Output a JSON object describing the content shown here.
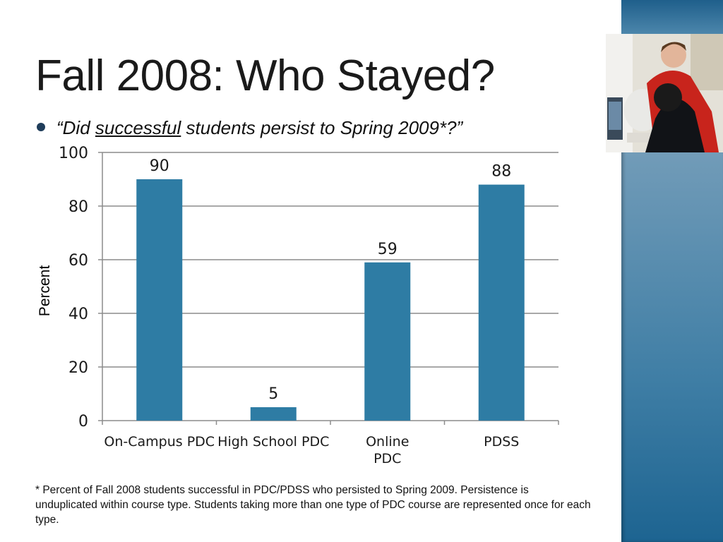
{
  "slide": {
    "title": "Fall 2008: Who Stayed?",
    "bullet": {
      "open_quote": "“Did ",
      "emphasis": "successful",
      "rest": " students persist to Spring 2009*?”"
    },
    "footnote": "* Percent of Fall 2008 students successful in PDC/PDSS who persisted to Spring 2009. Persistence is unduplicated within course type. Students taking more than one type of PDC course are represented once for each type."
  },
  "colors": {
    "bar": "#2e7ca4",
    "grid": "#8c8c8c",
    "text": "#1a1a1a"
  },
  "chart_data": {
    "type": "bar",
    "categories": [
      [
        "On-Campus PDC"
      ],
      [
        "High School PDC"
      ],
      [
        "Online",
        "PDC"
      ],
      [
        "PDSS"
      ]
    ],
    "values": [
      90,
      5,
      59,
      88
    ],
    "data_labels": [
      "90",
      "5",
      "59",
      "88"
    ],
    "ylabel": "Percent",
    "ylim": [
      0,
      100
    ],
    "yticks": [
      0,
      20,
      40,
      60,
      80,
      100
    ],
    "grid": true,
    "legend": "none"
  }
}
